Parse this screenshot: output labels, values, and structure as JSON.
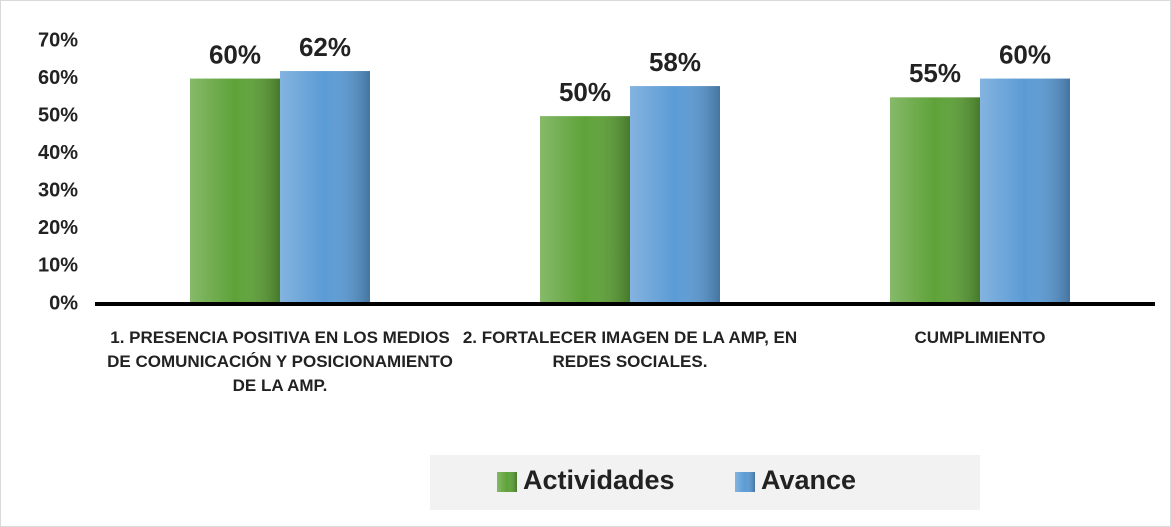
{
  "chart_data": {
    "type": "bar",
    "categories": [
      "1. PRESENCIA POSITIVA EN LOS MEDIOS DE COMUNICACIÓN Y POSICIONAMIENTO DE LA AMP.",
      "2. FORTALECER IMAGEN DE LA AMP, EN  REDES SOCIALES.",
      "CUMPLIMIENTO"
    ],
    "series": [
      {
        "name": "Actividades",
        "color": "#5ea238",
        "values": [
          60,
          50,
          55
        ],
        "value_labels": [
          "60%",
          "50%",
          "55%"
        ]
      },
      {
        "name": "Avance",
        "color": "#5b9bd5",
        "values": [
          62,
          58,
          60
        ],
        "value_labels": [
          "62%",
          "58%",
          "60%"
        ]
      }
    ],
    "ylim": [
      0,
      70
    ],
    "yticks": [
      {
        "value": 0,
        "label": "0%"
      },
      {
        "value": 10,
        "label": "10%"
      },
      {
        "value": 20,
        "label": "20%"
      },
      {
        "value": 30,
        "label": "30%"
      },
      {
        "value": 40,
        "label": "40%"
      },
      {
        "value": 50,
        "label": "50%"
      },
      {
        "value": 60,
        "label": "60%"
      },
      {
        "value": 70,
        "label": "70%"
      }
    ],
    "legend": "bottom"
  }
}
